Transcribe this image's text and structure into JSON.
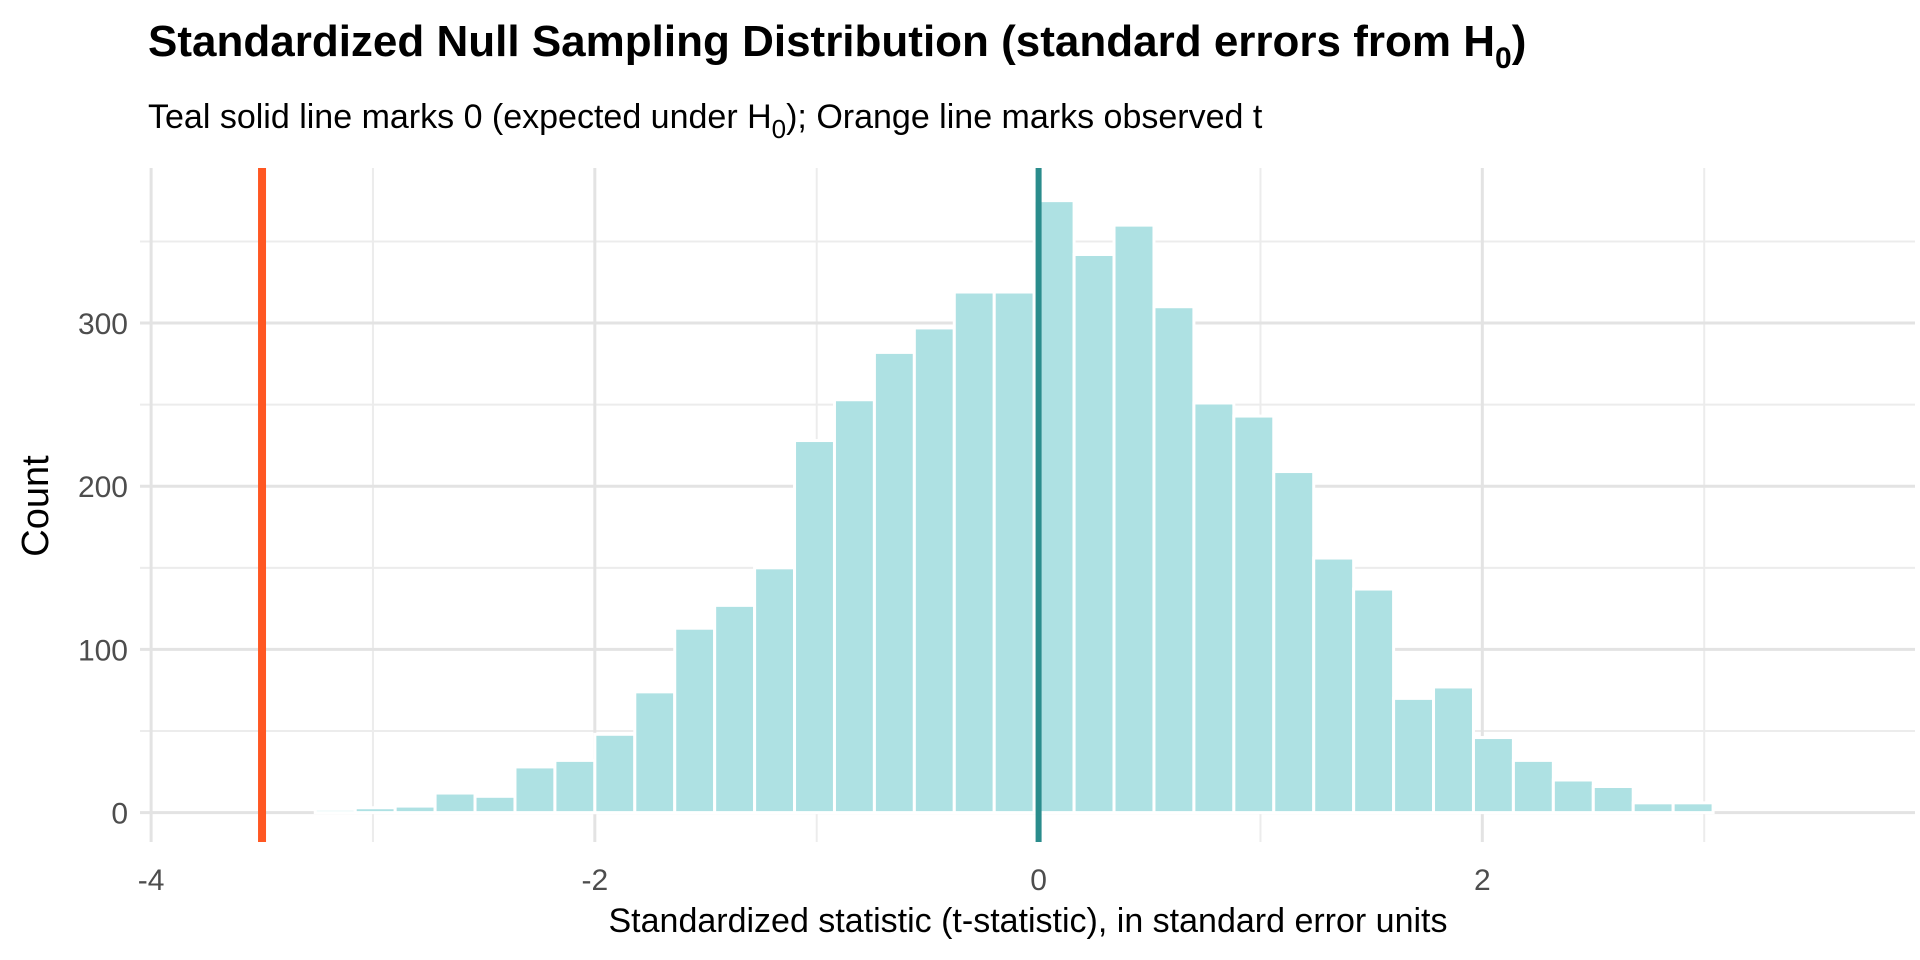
{
  "chart_data": {
    "type": "bar",
    "title": "Standardized Null Sampling Distribution (standard errors from H",
    "title_sub": "0",
    "title_end": ")",
    "subtitle": "Teal solid line marks 0 (expected under H",
    "subtitle_sub": "0",
    "subtitle_end": "); Orange line marks observed t",
    "xlabel": "Standardized statistic (t-statistic), in standard error units",
    "ylabel": "Count",
    "xlim": [
      -4.05,
      3.95
    ],
    "ylim": [
      -18,
      395
    ],
    "x_ticks": [
      -4,
      -2,
      0,
      2
    ],
    "x_tick_labels": [
      "-4",
      "-2",
      "0",
      "2"
    ],
    "y_ticks": [
      0,
      100,
      200,
      300
    ],
    "y_tick_labels": [
      "0",
      "100",
      "200",
      "300"
    ],
    "bin_width": 0.18,
    "bin_starts": [
      -3.26,
      -3.08,
      -2.9,
      -2.72,
      -2.54,
      -2.36,
      -2.18,
      -2.0,
      -1.82,
      -1.64,
      -1.46,
      -1.28,
      -1.1,
      -0.92,
      -0.74,
      -0.56,
      -0.38,
      -0.2,
      -0.02,
      0.16,
      0.34,
      0.52,
      0.7,
      0.88,
      1.06,
      1.24,
      1.42,
      1.6,
      1.78,
      1.96,
      2.14,
      2.32,
      2.5,
      2.68,
      2.86
    ],
    "counts": [
      2,
      3,
      4,
      12,
      10,
      28,
      32,
      48,
      74,
      113,
      127,
      150,
      228,
      253,
      282,
      297,
      319,
      319,
      375,
      342,
      360,
      310,
      251,
      243,
      209,
      156,
      137,
      70,
      77,
      46,
      32,
      20,
      16,
      6,
      6
    ],
    "reference_lines": [
      {
        "name": "observed t",
        "x": -3.5,
        "color": "#FF5722"
      },
      {
        "name": "expected under H0",
        "x": 0,
        "color": "#2A8C8C"
      }
    ],
    "bar_color": "#AEE1E3",
    "grid": true,
    "legend": "none"
  }
}
